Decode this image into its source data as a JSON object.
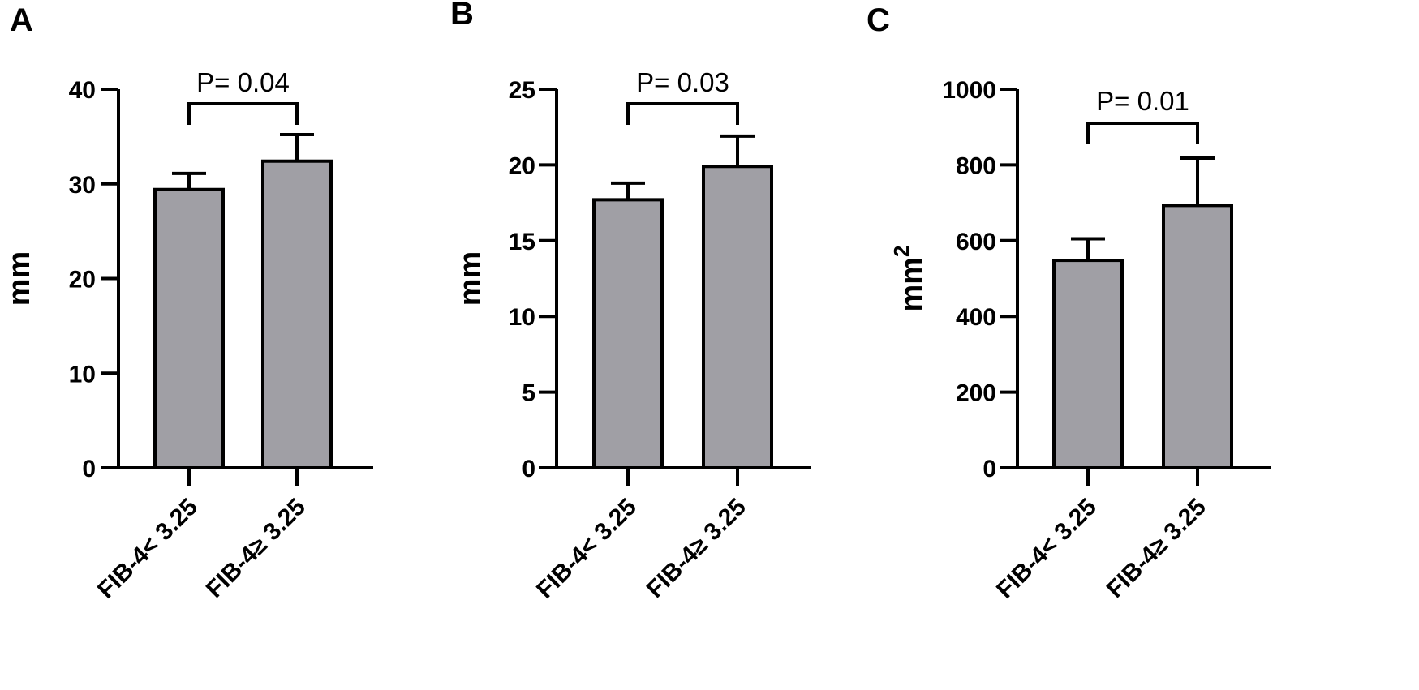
{
  "chart_data": [
    {
      "type": "bar",
      "panel": "A",
      "categories": [
        "FIB-4< 3.25",
        "FIB-4≥ 3.25"
      ],
      "values": [
        29.4,
        32.4
      ],
      "error_upper": [
        31.1,
        35.2
      ],
      "ylabel": "mm",
      "ylim": [
        0,
        40
      ],
      "yticks": [
        "0",
        "10",
        "20",
        "30",
        "40"
      ],
      "annotation": "P= 0.04",
      "bar_color": "#a09fa5",
      "grid": false
    },
    {
      "type": "bar",
      "panel": "B",
      "categories": [
        "FIB-4< 3.25",
        "FIB-4≥ 3.25"
      ],
      "values": [
        17.7,
        19.9
      ],
      "error_upper": [
        18.8,
        21.9
      ],
      "ylabel": "mm",
      "ylim": [
        0,
        25
      ],
      "yticks": [
        "0",
        "5",
        "10",
        "15",
        "20",
        "25"
      ],
      "annotation": "P= 0.03",
      "bar_color": "#a09fa5",
      "grid": false
    },
    {
      "type": "bar",
      "panel": "C",
      "categories": [
        "FIB-4< 3.25",
        "FIB-4≥ 3.25"
      ],
      "values": [
        548,
        693
      ],
      "error_upper": [
        605,
        818
      ],
      "ylabel": "mm",
      "ylabel_sup": "2",
      "ylim": [
        0,
        1000
      ],
      "yticks": [
        "0",
        "200",
        "400",
        "600",
        "800",
        "1000"
      ],
      "annotation": "P= 0.01",
      "bar_color": "#a09fa5",
      "grid": false
    }
  ]
}
